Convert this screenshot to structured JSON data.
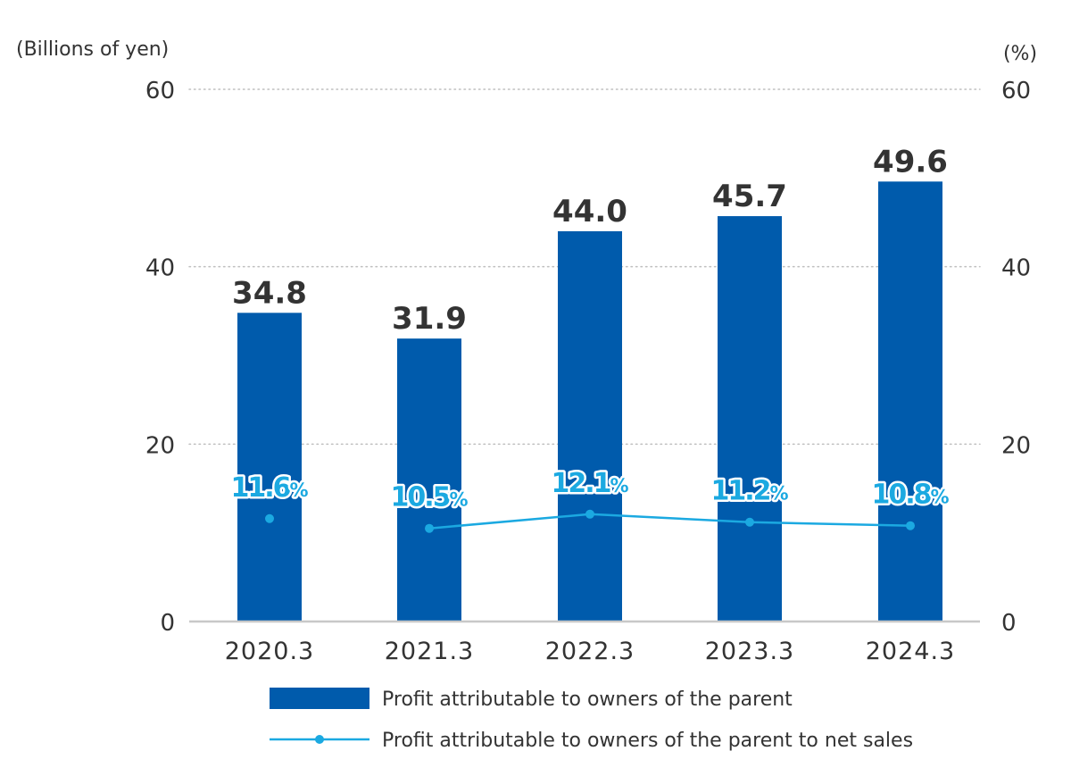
{
  "colors": {
    "bar": "#005BAC",
    "line": "#1BA9E1",
    "grid": "#bfbfbf",
    "axis": "#c8c8c8",
    "text": "#333333"
  },
  "chart_data": {
    "type": "bar+line",
    "left_axis_label": "(Billions of yen)",
    "right_axis_label": "(%)",
    "categories": [
      "2020.3",
      "2021.3",
      "2022.3",
      "2023.3",
      "2024.3"
    ],
    "ylim_left": [
      0,
      60
    ],
    "ylim_right": [
      0,
      60
    ],
    "yticks_left": [
      "0",
      "20",
      "40",
      "60"
    ],
    "yticks_right": [
      "0",
      "20",
      "40",
      "60"
    ],
    "gridlines": "dotted",
    "series": [
      {
        "name": "Profit attributable to owners of the parent",
        "type": "bar",
        "axis": "left",
        "values": [
          34.8,
          31.9,
          44.0,
          45.7,
          49.6
        ],
        "labels": [
          "34.8",
          "31.9",
          "44.0",
          "45.7",
          "49.6"
        ]
      },
      {
        "name": "Profit attributable to owners of the parent to net sales",
        "type": "line",
        "axis": "right",
        "values": [
          11.6,
          10.5,
          12.1,
          11.2,
          10.8
        ],
        "labels": [
          "11.6",
          "10.5",
          "12.1",
          "11.2",
          "10.8"
        ],
        "unit": "%",
        "connected_from_index": 1
      }
    ],
    "legend_position": "bottom"
  }
}
